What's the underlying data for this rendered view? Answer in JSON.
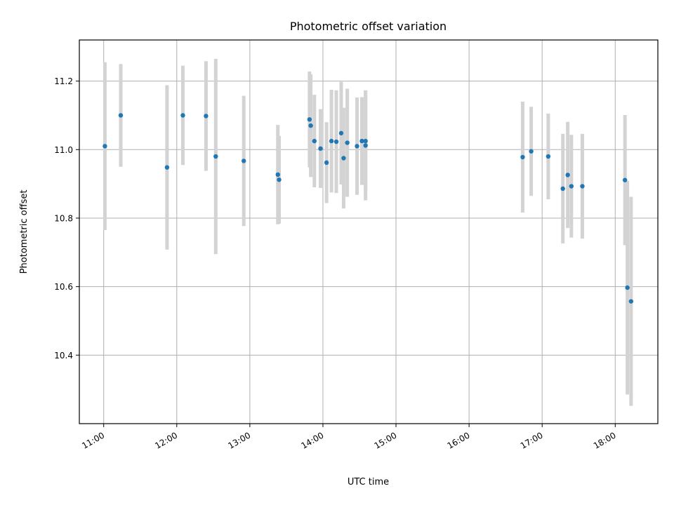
{
  "chart_data": {
    "type": "scatter",
    "title": "Photometric offset variation",
    "xlabel": "UTC time",
    "ylabel": "Photometric offset",
    "xlim": [
      "10:40",
      "18:35"
    ],
    "ylim": [
      10.2,
      11.32
    ],
    "x_ticks": [
      "11:00",
      "12:00",
      "13:00",
      "14:00",
      "15:00",
      "16:00",
      "17:00",
      "18:00"
    ],
    "y_ticks": [
      "10.4",
      "10.6",
      "10.8",
      "11.0",
      "11.2"
    ],
    "grid": true,
    "marker_color": "#1f77b4",
    "errorbar_color": "#d3d3d3",
    "points": [
      {
        "time": "11:01",
        "value": 11.01,
        "err": 0.245
      },
      {
        "time": "11:14",
        "value": 11.1,
        "err": 0.15
      },
      {
        "time": "11:52",
        "value": 10.948,
        "err": 0.24
      },
      {
        "time": "12:05",
        "value": 11.1,
        "err": 0.145
      },
      {
        "time": "12:24",
        "value": 11.098,
        "err": 0.16
      },
      {
        "time": "12:32",
        "value": 10.98,
        "err": 0.285
      },
      {
        "time": "12:55",
        "value": 10.967,
        "err": 0.19
      },
      {
        "time": "13:23",
        "value": 10.927,
        "err": 0.145
      },
      {
        "time": "13:24",
        "value": 10.912,
        "err": 0.128
      },
      {
        "time": "13:49",
        "value": 11.088,
        "err": 0.14
      },
      {
        "time": "13:50",
        "value": 11.07,
        "err": 0.15
      },
      {
        "time": "13:53",
        "value": 11.025,
        "err": 0.135
      },
      {
        "time": "13:58",
        "value": 11.003,
        "err": 0.115
      },
      {
        "time": "14:03",
        "value": 10.962,
        "err": 0.118
      },
      {
        "time": "14:07",
        "value": 11.025,
        "err": 0.15
      },
      {
        "time": "14:11",
        "value": 11.023,
        "err": 0.15
      },
      {
        "time": "14:15",
        "value": 11.048,
        "err": 0.15
      },
      {
        "time": "14:17",
        "value": 10.975,
        "err": 0.147
      },
      {
        "time": "14:20",
        "value": 11.02,
        "err": 0.158
      },
      {
        "time": "14:28",
        "value": 11.01,
        "err": 0.142
      },
      {
        "time": "14:32",
        "value": 11.025,
        "err": 0.128
      },
      {
        "time": "14:35",
        "value": 11.012,
        "err": 0.16
      },
      {
        "time": "14:35",
        "value": 11.025,
        "err": 0.148
      },
      {
        "time": "16:44",
        "value": 10.978,
        "err": 0.162
      },
      {
        "time": "16:51",
        "value": 10.995,
        "err": 0.13
      },
      {
        "time": "17:05",
        "value": 10.98,
        "err": 0.125
      },
      {
        "time": "17:17",
        "value": 10.886,
        "err": 0.16
      },
      {
        "time": "17:21",
        "value": 10.926,
        "err": 0.155
      },
      {
        "time": "17:24",
        "value": 10.893,
        "err": 0.15
      },
      {
        "time": "17:33",
        "value": 10.893,
        "err": 0.153
      },
      {
        "time": "18:08",
        "value": 10.911,
        "err": 0.19
      },
      {
        "time": "18:10",
        "value": 10.597,
        "err": 0.312
      },
      {
        "time": "18:13",
        "value": 10.557,
        "err": 0.305
      }
    ]
  }
}
